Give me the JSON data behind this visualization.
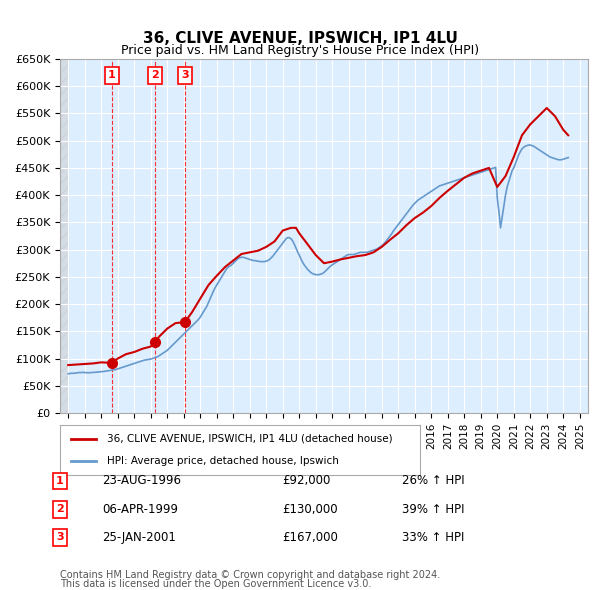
{
  "title": "36, CLIVE AVENUE, IPSWICH, IP1 4LU",
  "subtitle": "Price paid vs. HM Land Registry's House Price Index (HPI)",
  "ylabel": "",
  "xlabel": "",
  "ylim": [
    0,
    650000
  ],
  "yticks": [
    0,
    50000,
    100000,
    150000,
    200000,
    250000,
    300000,
    350000,
    400000,
    450000,
    500000,
    550000,
    600000,
    650000
  ],
  "ytick_labels": [
    "£0",
    "£50K",
    "£100K",
    "£150K",
    "£200K",
    "£250K",
    "£300K",
    "£350K",
    "£400K",
    "£450K",
    "£500K",
    "£550K",
    "£600K",
    "£650K"
  ],
  "xlim_start": 1993.5,
  "xlim_end": 2025.5,
  "transactions": [
    {
      "num": 1,
      "date": "23-AUG-1996",
      "year": 1996.65,
      "price": 92000,
      "pct": "26%",
      "dir": "↑"
    },
    {
      "num": 2,
      "date": "06-APR-1999",
      "year": 1999.27,
      "price": 130000,
      "pct": "39%",
      "dir": "↑"
    },
    {
      "num": 3,
      "date": "25-JAN-2001",
      "year": 2001.07,
      "price": 167000,
      "pct": "33%",
      "dir": "↑"
    }
  ],
  "legend_line1": "36, CLIVE AVENUE, IPSWICH, IP1 4LU (detached house)",
  "legend_line2": "HPI: Average price, detached house, Ipswich",
  "footer1": "Contains HM Land Registry data © Crown copyright and database right 2024.",
  "footer2": "This data is licensed under the Open Government Licence v3.0.",
  "property_color": "#cc0000",
  "hpi_color": "#6699cc",
  "bg_color": "#ddeeff",
  "grid_color": "#ffffff",
  "hatch_color": "#cccccc",
  "hpi_data_x": [
    1994.0,
    1994.1,
    1994.2,
    1994.3,
    1994.4,
    1994.5,
    1994.6,
    1994.7,
    1994.8,
    1994.9,
    1995.0,
    1995.1,
    1995.2,
    1995.3,
    1995.4,
    1995.5,
    1995.6,
    1995.7,
    1995.8,
    1995.9,
    1996.0,
    1996.1,
    1996.2,
    1996.3,
    1996.4,
    1996.5,
    1996.6,
    1996.7,
    1996.8,
    1996.9,
    1997.0,
    1997.1,
    1997.2,
    1997.3,
    1997.4,
    1997.5,
    1997.6,
    1997.7,
    1997.8,
    1997.9,
    1998.0,
    1998.1,
    1998.2,
    1998.3,
    1998.4,
    1998.5,
    1998.6,
    1998.7,
    1998.8,
    1998.9,
    1999.0,
    1999.1,
    1999.2,
    1999.3,
    1999.4,
    1999.5,
    1999.6,
    1999.7,
    1999.8,
    1999.9,
    2000.0,
    2000.1,
    2000.2,
    2000.3,
    2000.4,
    2000.5,
    2000.6,
    2000.7,
    2000.8,
    2000.9,
    2001.0,
    2001.1,
    2001.2,
    2001.3,
    2001.4,
    2001.5,
    2001.6,
    2001.7,
    2001.8,
    2001.9,
    2002.0,
    2002.1,
    2002.2,
    2002.3,
    2002.4,
    2002.5,
    2002.6,
    2002.7,
    2002.8,
    2002.9,
    2003.0,
    2003.1,
    2003.2,
    2003.3,
    2003.4,
    2003.5,
    2003.6,
    2003.7,
    2003.8,
    2003.9,
    2004.0,
    2004.1,
    2004.2,
    2004.3,
    2004.4,
    2004.5,
    2004.6,
    2004.7,
    2004.8,
    2004.9,
    2005.0,
    2005.1,
    2005.2,
    2005.3,
    2005.4,
    2005.5,
    2005.6,
    2005.7,
    2005.8,
    2005.9,
    2006.0,
    2006.1,
    2006.2,
    2006.3,
    2006.4,
    2006.5,
    2006.6,
    2006.7,
    2006.8,
    2006.9,
    2007.0,
    2007.1,
    2007.2,
    2007.3,
    2007.4,
    2007.5,
    2007.6,
    2007.7,
    2007.8,
    2007.9,
    2008.0,
    2008.1,
    2008.2,
    2008.3,
    2008.4,
    2008.5,
    2008.6,
    2008.7,
    2008.8,
    2008.9,
    2009.0,
    2009.1,
    2009.2,
    2009.3,
    2009.4,
    2009.5,
    2009.6,
    2009.7,
    2009.8,
    2009.9,
    2010.0,
    2010.1,
    2010.2,
    2010.3,
    2010.4,
    2010.5,
    2010.6,
    2010.7,
    2010.8,
    2010.9,
    2011.0,
    2011.1,
    2011.2,
    2011.3,
    2011.4,
    2011.5,
    2011.6,
    2011.7,
    2011.8,
    2011.9,
    2012.0,
    2012.1,
    2012.2,
    2012.3,
    2012.4,
    2012.5,
    2012.6,
    2012.7,
    2012.8,
    2012.9,
    2013.0,
    2013.1,
    2013.2,
    2013.3,
    2013.4,
    2013.5,
    2013.6,
    2013.7,
    2013.8,
    2013.9,
    2014.0,
    2014.1,
    2014.2,
    2014.3,
    2014.4,
    2014.5,
    2014.6,
    2014.7,
    2014.8,
    2014.9,
    2015.0,
    2015.1,
    2015.2,
    2015.3,
    2015.4,
    2015.5,
    2015.6,
    2015.7,
    2015.8,
    2015.9,
    2016.0,
    2016.1,
    2016.2,
    2016.3,
    2016.4,
    2016.5,
    2016.6,
    2016.7,
    2016.8,
    2016.9,
    2017.0,
    2017.1,
    2017.2,
    2017.3,
    2017.4,
    2017.5,
    2017.6,
    2017.7,
    2017.8,
    2017.9,
    2018.0,
    2018.1,
    2018.2,
    2018.3,
    2018.4,
    2018.5,
    2018.6,
    2018.7,
    2018.8,
    2018.9,
    2019.0,
    2019.1,
    2019.2,
    2019.3,
    2019.4,
    2019.5,
    2019.6,
    2019.7,
    2019.8,
    2019.9,
    2020.0,
    2020.1,
    2020.2,
    2020.3,
    2020.4,
    2020.5,
    2020.6,
    2020.7,
    2020.8,
    2020.9,
    2021.0,
    2021.1,
    2021.2,
    2021.3,
    2021.4,
    2021.5,
    2021.6,
    2021.7,
    2021.8,
    2021.9,
    2022.0,
    2022.1,
    2022.2,
    2022.3,
    2022.4,
    2022.5,
    2022.6,
    2022.7,
    2022.8,
    2022.9,
    2023.0,
    2023.1,
    2023.2,
    2023.3,
    2023.4,
    2023.5,
    2023.6,
    2023.7,
    2023.8,
    2023.9,
    2024.0,
    2024.1,
    2024.2,
    2024.3
  ],
  "hpi_data_y": [
    72000,
    72500,
    73000,
    72800,
    73200,
    73500,
    74000,
    74500,
    74200,
    74800,
    74000,
    74200,
    73800,
    74000,
    74200,
    74500,
    74800,
    75000,
    75200,
    75500,
    75800,
    76200,
    76500,
    77000,
    77500,
    78000,
    78500,
    79000,
    79500,
    80000,
    81000,
    82000,
    83000,
    84000,
    85000,
    86000,
    87000,
    88000,
    89000,
    90000,
    91000,
    92000,
    93000,
    94000,
    95000,
    96000,
    97000,
    97500,
    98000,
    98500,
    99000,
    100000,
    101000,
    102000,
    103000,
    105000,
    107000,
    109000,
    111000,
    113000,
    115000,
    118000,
    121000,
    124000,
    127000,
    130000,
    133000,
    136000,
    139000,
    142000,
    145000,
    148000,
    151000,
    154000,
    157000,
    160000,
    163000,
    166000,
    169000,
    172000,
    176000,
    181000,
    186000,
    191000,
    196000,
    203000,
    210000,
    217000,
    224000,
    230000,
    235000,
    240000,
    245000,
    250000,
    255000,
    260000,
    265000,
    268000,
    270000,
    272000,
    275000,
    278000,
    281000,
    284000,
    285000,
    286000,
    286000,
    285000,
    284000,
    283000,
    282000,
    281000,
    280000,
    280000,
    279000,
    279000,
    278000,
    278000,
    278000,
    278000,
    279000,
    280000,
    282000,
    285000,
    288000,
    292000,
    296000,
    300000,
    304000,
    308000,
    312000,
    316000,
    320000,
    322000,
    322000,
    320000,
    316000,
    310000,
    303000,
    296000,
    290000,
    283000,
    277000,
    272000,
    268000,
    264000,
    261000,
    258000,
    256000,
    255000,
    254000,
    254000,
    254000,
    255000,
    256000,
    258000,
    261000,
    264000,
    267000,
    270000,
    272000,
    274000,
    276000,
    278000,
    280000,
    282000,
    284000,
    286000,
    288000,
    290000,
    291000,
    291000,
    291000,
    291000,
    292000,
    293000,
    294000,
    295000,
    295000,
    295000,
    295000,
    295000,
    296000,
    297000,
    298000,
    299000,
    300000,
    301000,
    303000,
    305000,
    307000,
    310000,
    313000,
    317000,
    321000,
    325000,
    329000,
    334000,
    338000,
    342000,
    346000,
    350000,
    354000,
    358000,
    362000,
    366000,
    370000,
    374000,
    378000,
    382000,
    385000,
    388000,
    391000,
    393000,
    395000,
    397000,
    399000,
    401000,
    403000,
    405000,
    407000,
    409000,
    411000,
    413000,
    415000,
    417000,
    418000,
    419000,
    420000,
    421000,
    422000,
    423000,
    424000,
    425000,
    426000,
    427000,
    428000,
    429000,
    430000,
    431000,
    432000,
    433000,
    434000,
    435000,
    436000,
    437000,
    438000,
    439000,
    440000,
    441000,
    442000,
    443000,
    444000,
    445000,
    446000,
    447000,
    448000,
    449000,
    450000,
    451000,
    395000,
    370000,
    340000,
    360000,
    380000,
    400000,
    415000,
    425000,
    435000,
    445000,
    450000,
    458000,
    466000,
    474000,
    480000,
    485000,
    488000,
    490000,
    491000,
    492000,
    492000,
    491000,
    490000,
    488000,
    486000,
    484000,
    482000,
    480000,
    478000,
    476000,
    474000,
    472000,
    470000,
    469000,
    468000,
    467000,
    466000,
    465000,
    465000,
    465000,
    466000,
    467000,
    468000,
    469000
  ],
  "prop_data_x": [
    1994.0,
    1994.5,
    1995.0,
    1995.5,
    1996.0,
    1996.65,
    1997.0,
    1997.5,
    1998.0,
    1998.5,
    1999.0,
    1999.27,
    1999.5,
    2000.0,
    2000.5,
    2001.07,
    2001.5,
    2002.0,
    2002.5,
    2003.0,
    2003.5,
    2004.0,
    2004.5,
    2005.0,
    2005.5,
    2006.0,
    2006.5,
    2007.0,
    2007.5,
    2007.8,
    2008.0,
    2008.5,
    2009.0,
    2009.5,
    2010.0,
    2010.5,
    2011.0,
    2011.5,
    2012.0,
    2012.5,
    2013.0,
    2013.5,
    2014.0,
    2014.5,
    2015.0,
    2015.5,
    2016.0,
    2016.5,
    2017.0,
    2017.5,
    2018.0,
    2018.5,
    2019.0,
    2019.5,
    2020.0,
    2020.5,
    2021.0,
    2021.5,
    2022.0,
    2022.5,
    2023.0,
    2023.5,
    2024.0,
    2024.3
  ],
  "prop_data_y": [
    88000,
    89000,
    90000,
    91000,
    93000,
    92000,
    100000,
    108000,
    112000,
    118000,
    122000,
    130000,
    140000,
    155000,
    165000,
    167000,
    185000,
    210000,
    235000,
    252000,
    268000,
    280000,
    292000,
    295000,
    298000,
    305000,
    315000,
    335000,
    340000,
    340000,
    330000,
    310000,
    290000,
    275000,
    278000,
    282000,
    285000,
    288000,
    290000,
    295000,
    305000,
    318000,
    330000,
    345000,
    358000,
    368000,
    380000,
    395000,
    408000,
    420000,
    432000,
    440000,
    445000,
    450000,
    415000,
    435000,
    470000,
    510000,
    530000,
    545000,
    560000,
    545000,
    520000,
    510000
  ]
}
